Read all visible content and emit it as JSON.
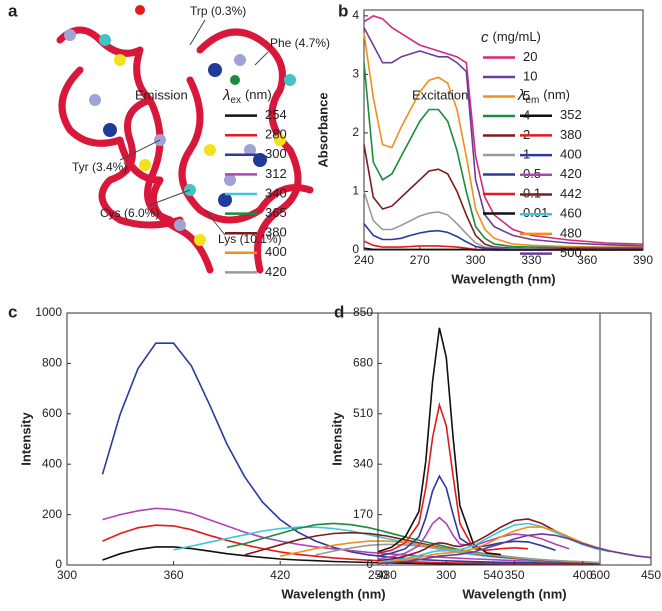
{
  "panel_a": {
    "panel_label": "a",
    "labels": [
      "Trp (0.3%)",
      "Phe (4.7%)",
      "Tyr (3.4%)",
      "Cys (6.0%)",
      "Lys (10.1%)"
    ]
  },
  "chart_data": [
    {
      "type": "line",
      "panel_label": "b",
      "xlabel": "Wavelength (nm)",
      "ylabel": "Absorbance",
      "xlim": [
        240,
        390
      ],
      "ylim": [
        0,
        4.1
      ],
      "xticks": [
        240,
        270,
        300,
        330,
        360,
        390
      ],
      "yticks": [
        0,
        1,
        2,
        3,
        4
      ],
      "legend_title": {
        "symbol": "c",
        "unit": "(mg/mL)"
      },
      "x": [
        240,
        245,
        250,
        255,
        260,
        265,
        270,
        275,
        280,
        285,
        290,
        295,
        300,
        305,
        310,
        320,
        330,
        350,
        370,
        390
      ],
      "series": [
        {
          "name": "20",
          "color": "#d6297f",
          "values": [
            3.9,
            4.0,
            3.95,
            3.8,
            3.7,
            3.6,
            3.5,
            3.45,
            3.4,
            3.35,
            3.3,
            3.2,
            1.6,
            0.9,
            0.6,
            0.35,
            0.25,
            0.17,
            0.12,
            0.1
          ]
        },
        {
          "name": "10",
          "color": "#6a3d9a",
          "values": [
            3.8,
            3.5,
            3.2,
            3.2,
            3.3,
            3.35,
            3.4,
            3.35,
            3.3,
            3.3,
            3.2,
            3.05,
            1.2,
            0.6,
            0.4,
            0.25,
            0.18,
            0.12,
            0.09,
            0.07
          ]
        },
        {
          "name": "5",
          "color": "#f28e1c",
          "values": [
            3.7,
            2.6,
            1.8,
            1.75,
            2.1,
            2.4,
            2.7,
            2.9,
            2.95,
            2.85,
            2.4,
            1.6,
            0.7,
            0.35,
            0.2,
            0.1,
            0.08,
            0.06,
            0.05,
            0.05
          ]
        },
        {
          "name": "4",
          "color": "#1a8c3c",
          "values": [
            3.2,
            1.5,
            1.2,
            1.3,
            1.6,
            1.9,
            2.2,
            2.4,
            2.4,
            2.2,
            1.7,
            1.0,
            0.4,
            0.2,
            0.1,
            0.06,
            0.05,
            0.04,
            0.04,
            0.04
          ]
        },
        {
          "name": "2",
          "color": "#7b1c1c",
          "values": [
            1.8,
            0.9,
            0.7,
            0.75,
            0.9,
            1.05,
            1.2,
            1.35,
            1.38,
            1.3,
            1.0,
            0.6,
            0.25,
            0.1,
            0.05,
            0.03,
            0.02,
            0.02,
            0.02,
            0.02
          ]
        },
        {
          "name": "1",
          "color": "#9a9a9a",
          "values": [
            1.0,
            0.5,
            0.35,
            0.35,
            0.42,
            0.5,
            0.58,
            0.63,
            0.65,
            0.6,
            0.45,
            0.28,
            0.12,
            0.05,
            0.03,
            0.02,
            0.02,
            0.01,
            0.01,
            0.01
          ]
        },
        {
          "name": "0.5",
          "color": "#2b3a9c",
          "values": [
            0.45,
            0.25,
            0.18,
            0.18,
            0.2,
            0.25,
            0.29,
            0.32,
            0.33,
            0.3,
            0.23,
            0.14,
            0.06,
            0.03,
            0.02,
            0.01,
            0.01,
            0.01,
            0.01,
            0.01
          ]
        },
        {
          "name": "0.1",
          "color": "#e31a1c",
          "values": [
            0.15,
            0.08,
            0.05,
            0.05,
            0.05,
            0.06,
            0.07,
            0.07,
            0.07,
            0.06,
            0.05,
            0.03,
            0.01,
            0.01,
            0,
            0,
            0,
            0,
            0,
            0
          ]
        },
        {
          "name": "0.01",
          "color": "#111111",
          "values": [
            0.03,
            0.01,
            0.01,
            0.01,
            0.01,
            0.01,
            0.01,
            0.01,
            0.01,
            0.01,
            0.01,
            0.01,
            0,
            0,
            0,
            0,
            0,
            0,
            0,
            0
          ]
        }
      ]
    },
    {
      "type": "line",
      "panel_label": "c",
      "xlabel": "Wavelength (nm)",
      "ylabel": "Intensity",
      "xlim": [
        300,
        600
      ],
      "ylim": [
        0,
        1000
      ],
      "xticks": [
        300,
        360,
        420,
        480,
        540,
        600
      ],
      "yticks": [
        0,
        200,
        400,
        600,
        800,
        1000
      ],
      "annotation": {
        "text": "Emission",
        "color": "#1f2fd0"
      },
      "legend_title": {
        "symbol": "λ",
        "sub": "ex",
        "unit": "(nm)"
      },
      "x": [
        300,
        310,
        320,
        330,
        340,
        350,
        360,
        370,
        380,
        390,
        400,
        410,
        420,
        430,
        440,
        450,
        460,
        470,
        480,
        490,
        500,
        510,
        520,
        530,
        540,
        550,
        560,
        570,
        580,
        590,
        600
      ],
      "series": [
        {
          "name": "254",
          "color": "#111111",
          "values": [
            null,
            null,
            20,
            45,
            62,
            72,
            72,
            65,
            55,
            45,
            37,
            30,
            24,
            20,
            17,
            14,
            12,
            10,
            8,
            7,
            6,
            5,
            4,
            4,
            3,
            3,
            3,
            2,
            2,
            2,
            2
          ]
        },
        {
          "name": "280",
          "color": "#e31a1c",
          "values": [
            null,
            null,
            95,
            125,
            148,
            158,
            155,
            140,
            118,
            98,
            80,
            65,
            52,
            42,
            35,
            28,
            23,
            19,
            16,
            13,
            11,
            9,
            8,
            7,
            6,
            5,
            5,
            4,
            4,
            3,
            3
          ]
        },
        {
          "name": "300",
          "color": "#2b3a9c",
          "values": [
            null,
            null,
            360,
            600,
            780,
            880,
            880,
            790,
            640,
            480,
            350,
            250,
            180,
            130,
            95,
            70,
            52,
            40,
            32,
            26,
            21,
            18,
            15,
            13,
            11,
            10,
            9,
            8,
            7,
            6,
            6
          ]
        },
        {
          "name": "312",
          "color": "#b044b5",
          "values": [
            null,
            null,
            180,
            200,
            215,
            225,
            220,
            205,
            180,
            155,
            130,
            110,
            95,
            82,
            72,
            64,
            57,
            50,
            45,
            40,
            35,
            31,
            27,
            24,
            21,
            18,
            16,
            14,
            12,
            11,
            10
          ]
        },
        {
          "name": "340",
          "color": "#3cc6d6",
          "values": [
            null,
            null,
            null,
            null,
            null,
            null,
            60,
            75,
            90,
            105,
            120,
            135,
            145,
            150,
            150,
            145,
            135,
            120,
            105,
            90,
            75,
            62,
            50,
            40,
            32,
            26,
            20,
            16,
            12,
            10,
            8
          ]
        },
        {
          "name": "365",
          "color": "#1a8c3c",
          "values": [
            null,
            null,
            null,
            null,
            null,
            null,
            null,
            null,
            null,
            70,
            85,
            105,
            125,
            145,
            160,
            165,
            160,
            148,
            130,
            112,
            95,
            78,
            62,
            50,
            40,
            32,
            25,
            20,
            16,
            12,
            10
          ]
        },
        {
          "name": "380",
          "color": "#7b1c1c",
          "values": [
            null,
            null,
            null,
            null,
            null,
            null,
            null,
            null,
            null,
            null,
            40,
            60,
            80,
            100,
            115,
            125,
            128,
            125,
            115,
            100,
            85,
            70,
            57,
            45,
            35,
            28,
            22,
            17,
            13,
            10,
            8
          ]
        },
        {
          "name": "400",
          "color": "#f28e1c",
          "values": [
            null,
            null,
            null,
            null,
            null,
            null,
            null,
            null,
            null,
            null,
            null,
            null,
            35,
            50,
            65,
            78,
            88,
            95,
            95,
            90,
            80,
            68,
            57,
            47,
            38,
            30,
            24,
            19,
            15,
            12,
            10
          ]
        },
        {
          "name": "420",
          "color": "#9a9a9a",
          "values": [
            null,
            null,
            null,
            null,
            null,
            null,
            null,
            null,
            null,
            null,
            null,
            null,
            null,
            null,
            40,
            55,
            68,
            78,
            82,
            80,
            74,
            65,
            55,
            46,
            38,
            31,
            25,
            20,
            16,
            13,
            10
          ]
        }
      ]
    },
    {
      "type": "line",
      "panel_label": "d",
      "xlabel": "Wavelength (nm)",
      "ylabel": "Intensity",
      "xlim": [
        250,
        450
      ],
      "ylim": [
        0,
        850
      ],
      "xticks": [
        250,
        300,
        350,
        400,
        450
      ],
      "yticks": [
        0,
        170,
        340,
        510,
        680,
        850
      ],
      "annotation": {
        "text": "Excitation",
        "color": "#e31a1c"
      },
      "legend_title": {
        "symbol": "λ",
        "sub": "em",
        "unit": "(nm)"
      },
      "x": [
        250,
        260,
        270,
        280,
        285,
        290,
        295,
        300,
        305,
        310,
        320,
        330,
        340,
        350,
        360,
        370,
        380,
        390,
        400,
        410,
        420,
        430,
        440,
        450
      ],
      "series": [
        {
          "name": "352",
          "color": "#111111",
          "values": [
            45,
            60,
            95,
            180,
            350,
            620,
            800,
            700,
            430,
            200,
            70,
            40,
            35,
            null,
            null,
            null,
            null,
            null,
            null,
            null,
            null,
            null,
            null,
            null
          ]
        },
        {
          "name": "380",
          "color": "#e31a1c",
          "values": [
            40,
            50,
            75,
            140,
            260,
            430,
            540,
            470,
            300,
            140,
            55,
            50,
            55,
            58,
            55,
            null,
            null,
            null,
            null,
            null,
            null,
            null,
            null,
            null
          ]
        },
        {
          "name": "400",
          "color": "#2b3a9c",
          "values": [
            30,
            40,
            55,
            95,
            160,
            250,
            300,
            260,
            170,
            90,
            60,
            65,
            75,
            80,
            78,
            65,
            50,
            null,
            null,
            null,
            null,
            null,
            null,
            null
          ]
        },
        {
          "name": "420",
          "color": "#b044b5",
          "values": [
            20,
            28,
            40,
            65,
            100,
            140,
            160,
            140,
            100,
            70,
            65,
            80,
            95,
            105,
            100,
            88,
            70,
            55,
            null,
            null,
            null,
            null,
            null,
            null
          ]
        },
        {
          "name": "442",
          "color": "#7b1c1c",
          "values": [
            15,
            20,
            30,
            45,
            55,
            70,
            75,
            72,
            65,
            62,
            75,
            100,
            128,
            150,
            155,
            140,
            115,
            90,
            70,
            55,
            null,
            null,
            null,
            null
          ]
        },
        {
          "name": "460",
          "color": "#3cc6d6",
          "values": [
            10,
            15,
            22,
            32,
            38,
            45,
            48,
            48,
            50,
            52,
            65,
            90,
            115,
            135,
            140,
            130,
            110,
            88,
            68,
            55,
            45,
            null,
            null,
            null
          ]
        },
        {
          "name": "480",
          "color": "#f28e1c",
          "values": [
            8,
            12,
            18,
            25,
            30,
            35,
            38,
            40,
            42,
            45,
            55,
            72,
            95,
            115,
            128,
            128,
            115,
            95,
            75,
            60,
            48,
            38,
            30,
            null
          ]
        },
        {
          "name": "500",
          "color": "#6a3d9a",
          "values": [
            5,
            8,
            12,
            18,
            22,
            26,
            30,
            32,
            34,
            36,
            44,
            58,
            72,
            88,
            100,
            105,
            100,
            88,
            72,
            58,
            47,
            38,
            30,
            25
          ]
        }
      ]
    }
  ]
}
